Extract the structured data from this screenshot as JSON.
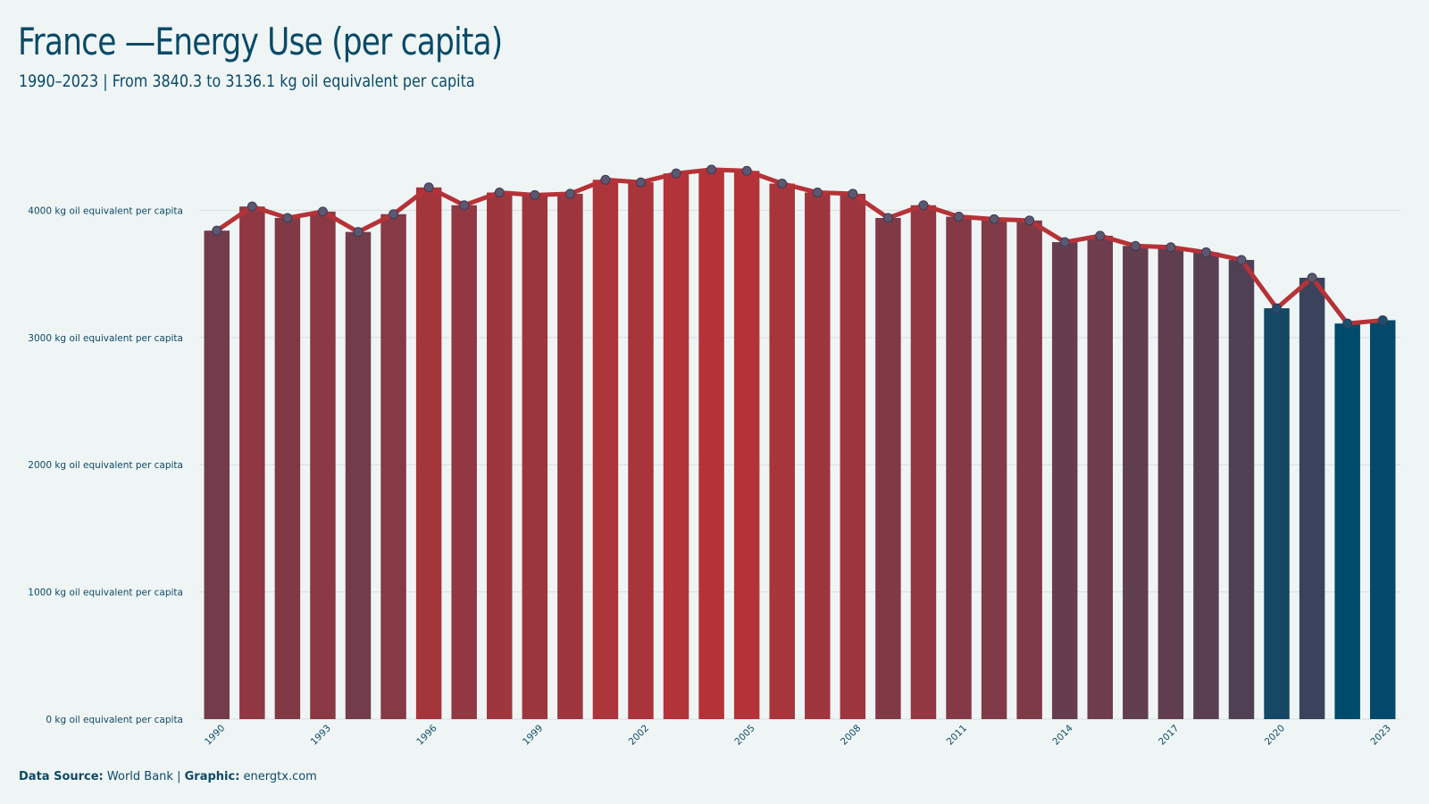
{
  "title": "France —Energy Use (per capita)",
  "subtitle": "1990–2023 | From 3840.3 to 3136.1 kg oil equivalent per capita",
  "footer": {
    "source_label": "Data Source:",
    "source_value": "World Bank",
    "separator": "|",
    "graphic_label": "Graphic:",
    "graphic_value": "energtx.com"
  },
  "colors": {
    "background": "#eff5f5",
    "high": "#b53338",
    "low": "#004a6b",
    "line": "#b53338",
    "marker_fill": "#5b5870",
    "text": "#0d4a66"
  },
  "chart_data": {
    "type": "bar",
    "categories": [
      1990,
      1991,
      1992,
      1993,
      1994,
      1995,
      1996,
      1997,
      1998,
      1999,
      2000,
      2001,
      2002,
      2003,
      2004,
      2005,
      2006,
      2007,
      2008,
      2009,
      2010,
      2011,
      2012,
      2013,
      2014,
      2015,
      2016,
      2017,
      2018,
      2019,
      2020,
      2021,
      2022,
      2023
    ],
    "values": [
      3840.3,
      4030,
      3940,
      3990,
      3830,
      3970,
      4180,
      4040,
      4140,
      4120,
      4130,
      4240,
      4220,
      4290,
      4320,
      4310,
      4210,
      4140,
      4130,
      3940,
      4040,
      3950,
      3930,
      3920,
      3750,
      3800,
      3720,
      3710,
      3670,
      3610,
      3230,
      3470,
      3110,
      3136.1
    ],
    "tick_labels_x": [
      "1990",
      "1993",
      "1996",
      "1999",
      "2002",
      "2005",
      "2008",
      "2011",
      "2014",
      "2017",
      "2020",
      "2023"
    ],
    "y_ticks": [
      0,
      1000,
      2000,
      3000,
      4000
    ],
    "y_tick_suffix": " kg oil equivalent per capita",
    "ylim": [
      0,
      4600
    ],
    "overlay": "line with markers",
    "grid": "horizontal",
    "legend": "none",
    "xlabel": "",
    "ylabel": ""
  }
}
